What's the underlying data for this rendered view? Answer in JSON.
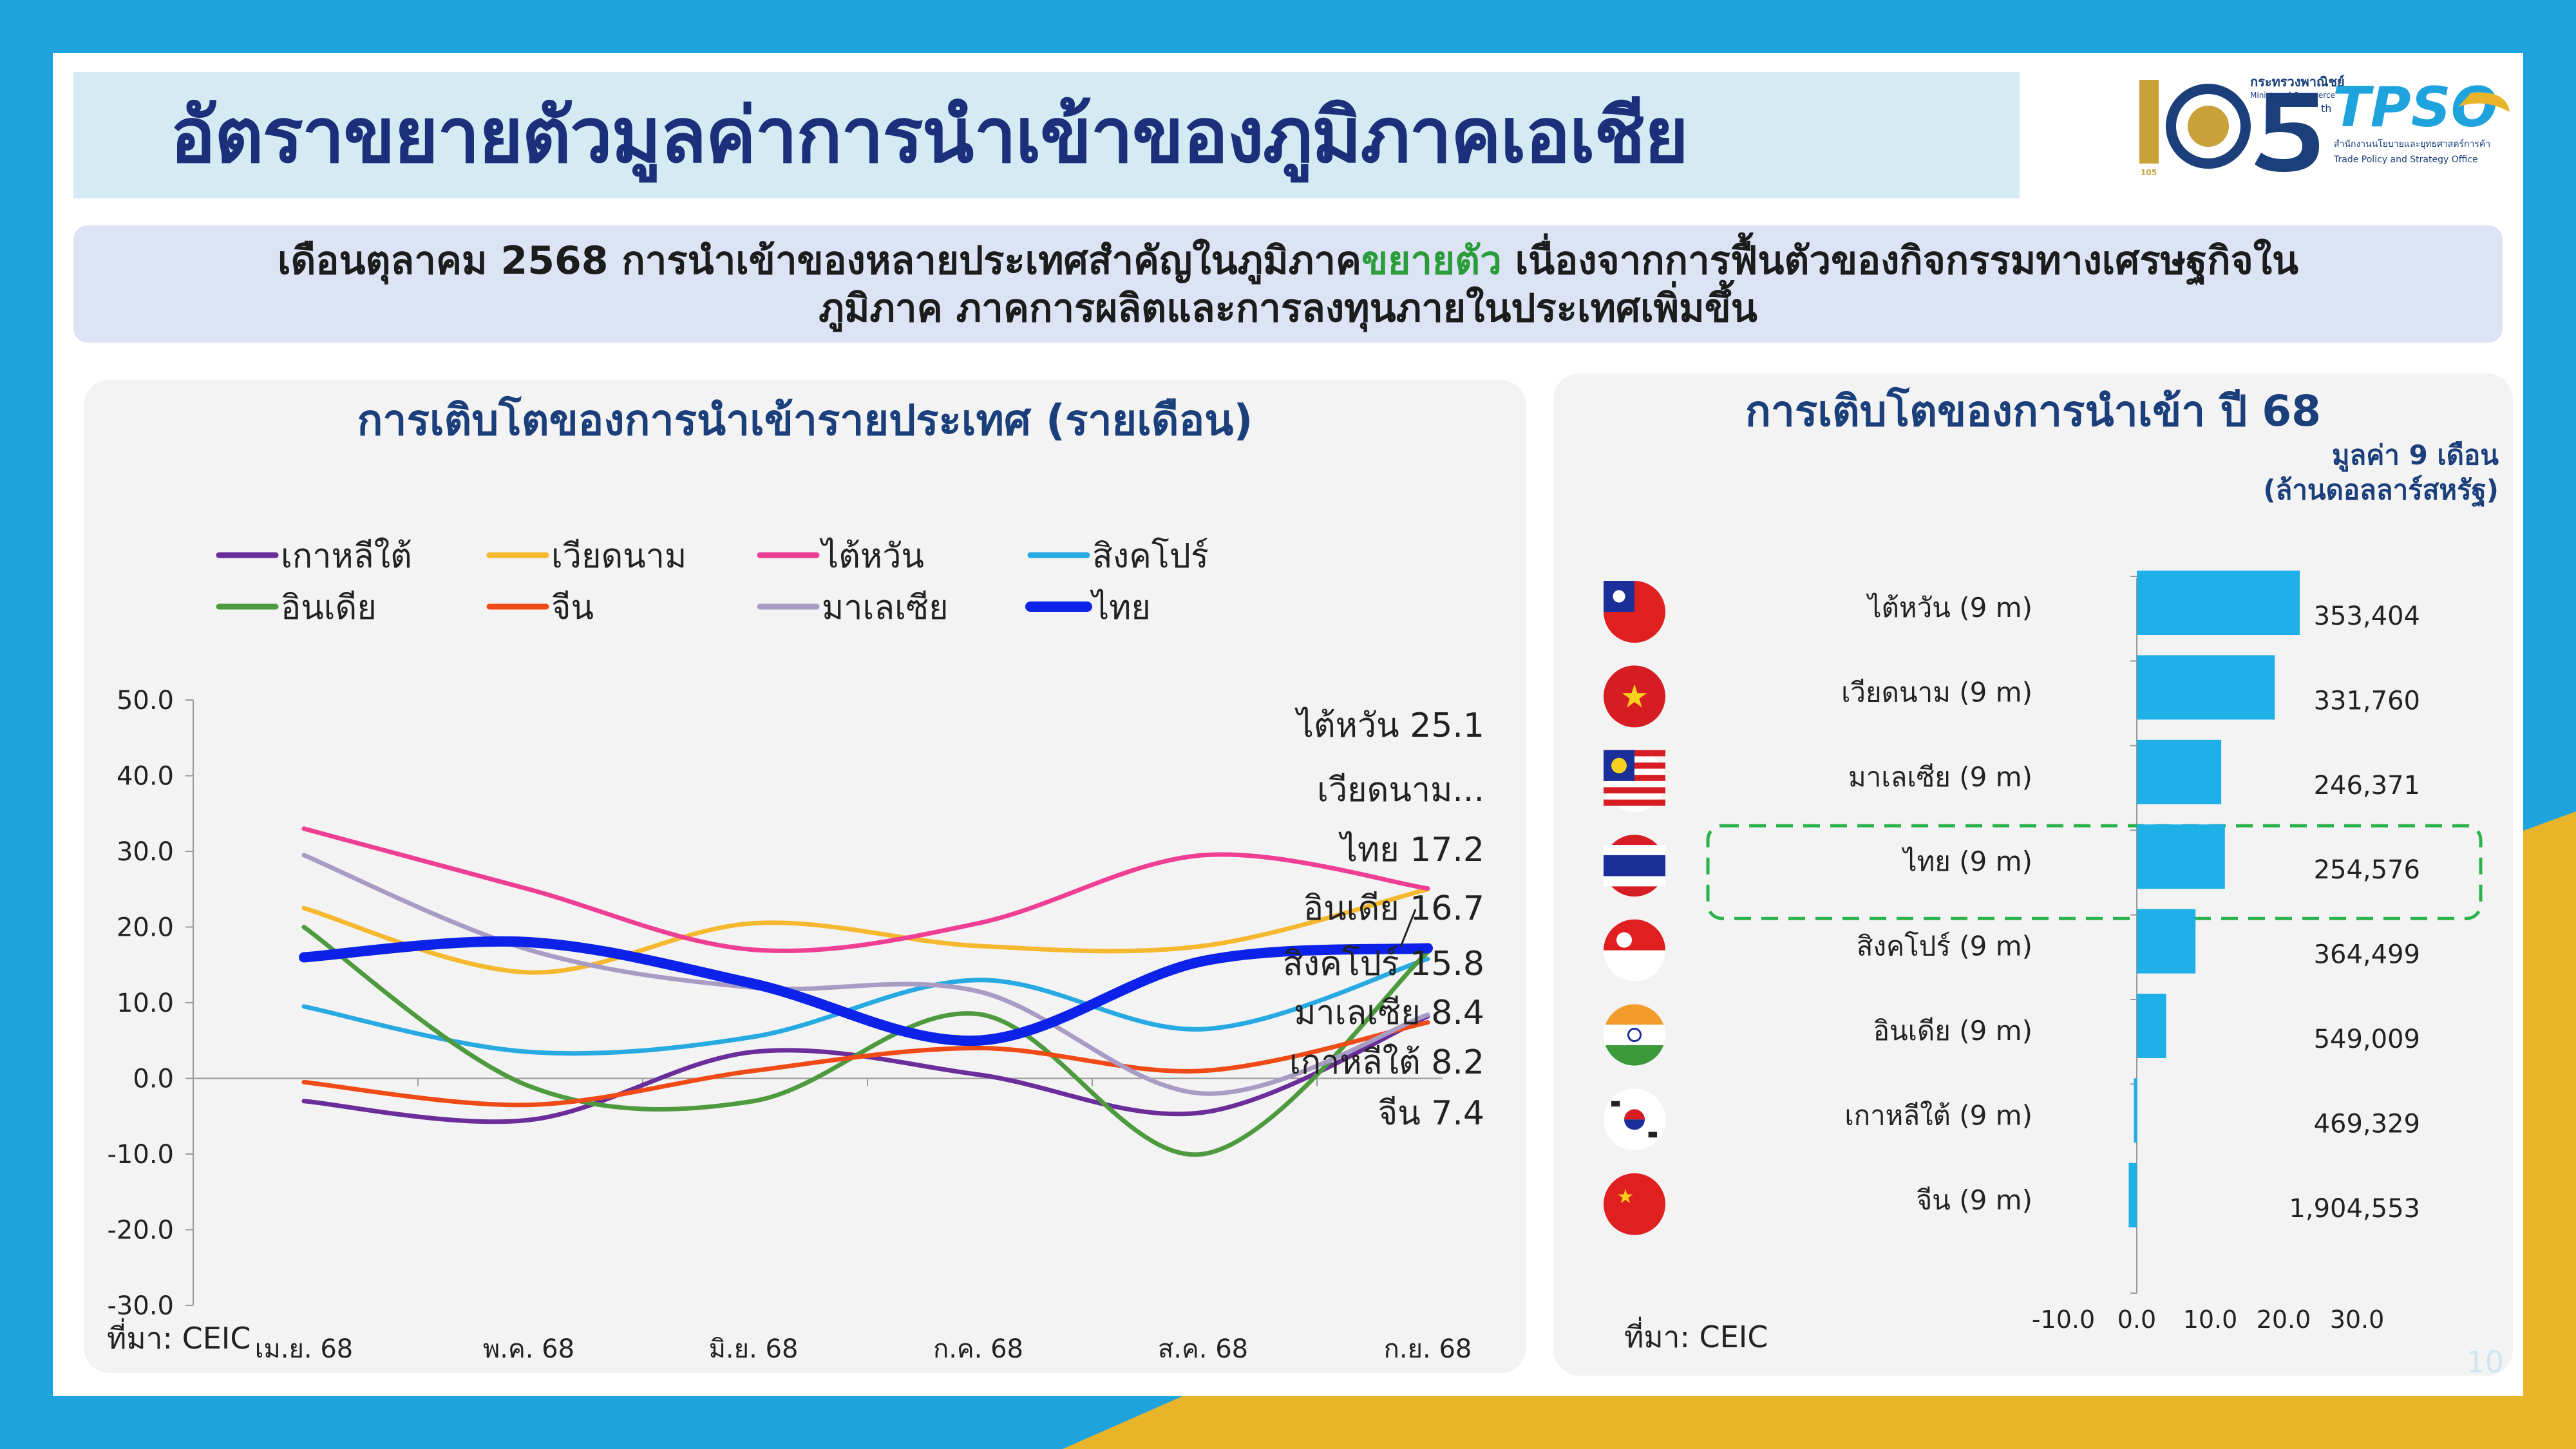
{
  "page": {
    "title": "อัตราขยายตัวมูลค่าการนำเข้าของภูมิภาคเอเชีย",
    "summary_part1": "เดือนตุลาคม 2568 การนำเข้าของหลายประเทศสำคัญในภูมิภาค",
    "summary_highlight": "ขยายตัว",
    "summary_part2": " เนื่องจากการฟื้นตัวของกิจกรรมทางเศรษฐกิจใน",
    "summary_line2": "ภูมิภาค ภาคการผลิตและการลงทุนภายในประเทศเพิ่มขึ้น",
    "page_number": "10",
    "logo_105_text": "กระทรวงพาณิชย์",
    "logo_105_sub": "Ministry of Commerce",
    "logo_105_number": "105",
    "logo_105_th": "th",
    "logo_tpso_name": "TPSO",
    "logo_tpso_th": "สำนักงานนโยบายและยุทธศาสตร์การค้า",
    "logo_tpso_en": "Trade Policy and Strategy Office"
  },
  "colors": {
    "korea": "#6a2d9a",
    "vietnam": "#f5b82e",
    "taiwan": "#ee3f94",
    "singapore": "#27a9e1",
    "india": "#4e9a3e",
    "china": "#f04a17",
    "malaysia": "#a89cc4",
    "thailand": "#0c22e8",
    "bar": "#1fb0e8",
    "highlight": "#2ab34a"
  },
  "chart_data": [
    {
      "type": "line",
      "title": "การเติบโตของการนำเข้ารายประเทศ (รายเดือน)",
      "categories": [
        "เม.ย. 68",
        "พ.ค. 68",
        "มิ.ย. 68",
        "ก.ค. 68",
        "ส.ค. 68",
        "ก.ย. 68"
      ],
      "ylim": [
        -30,
        50
      ],
      "yticks": [
        50,
        40,
        30,
        20,
        10,
        0,
        -10,
        -20,
        -30
      ],
      "ytick_labels": [
        "50.0",
        "40.0",
        "30.0",
        "20.0",
        "10.0",
        "0.0",
        "-10.0",
        "-20.0",
        "-30.0"
      ],
      "series": [
        {
          "key": "korea",
          "name": "เกาหลีใต้",
          "values": [
            -3,
            -5.5,
            3.5,
            0.5,
            -4.5,
            8.2
          ]
        },
        {
          "key": "vietnam",
          "name": "เวียดนาม",
          "values": [
            22.5,
            14,
            20.5,
            17.5,
            17.5,
            25
          ]
        },
        {
          "key": "taiwan",
          "name": "ไต้หวัน",
          "values": [
            33,
            25,
            17,
            20.5,
            29.5,
            25.1
          ]
        },
        {
          "key": "singapore",
          "name": "สิงคโปร์",
          "values": [
            9.5,
            3.5,
            5.5,
            13,
            6.5,
            15.8
          ]
        },
        {
          "key": "india",
          "name": "อินเดีย",
          "values": [
            20,
            -1,
            -3,
            8.5,
            -10,
            16.7
          ]
        },
        {
          "key": "china",
          "name": "จีน",
          "values": [
            -0.5,
            -3.5,
            1,
            4,
            1,
            7.4
          ]
        },
        {
          "key": "malaysia",
          "name": "มาเลเซีย",
          "values": [
            29.5,
            17,
            12,
            11.5,
            -2,
            8.4
          ]
        },
        {
          "key": "thailand",
          "name": "ไทย",
          "values": [
            16,
            18,
            12.5,
            5,
            15.5,
            17.2
          ]
        }
      ],
      "end_labels": [
        "ไต้หวัน 25.1",
        "เวียดนาม...",
        "ไทย 17.2",
        "อินเดีย 16.7",
        "สิงคโปร์ 15.8",
        "มาเลเซีย 8.4",
        "เกาหลีใต้ 8.2",
        "จีน 7.4"
      ],
      "source": "ที่มา: CEIC"
    },
    {
      "type": "bar",
      "orientation": "horizontal",
      "title": "การเติบโตของการนำเข้า ปี 68",
      "unit_line1": "มูลค่า 9 เดือน",
      "unit_line2": "(ล้านดอลลาร์สหรัฐ)",
      "categories": [
        "ไต้หวัน (9 m)",
        "เวียดนาม (9 m)",
        "มาเลเซีย (9 m)",
        "ไทย (9 m)",
        "สิงคโปร์ (9 m)",
        "อินเดีย (9 m)",
        "เกาหลีใต้ (9 m)",
        "จีน (9 m)"
      ],
      "values": [
        22.2,
        18.8,
        11.5,
        12.0,
        8.0,
        4.0,
        -0.4,
        -1.1
      ],
      "value_labels": [
        "353,404",
        "331,760",
        "246,371",
        "254,576",
        "364,499",
        "549,009",
        "469,329",
        "1,904,553"
      ],
      "flags": [
        "taiwan-flag",
        "vietnam-flag",
        "malaysia-flag",
        "thailand-flag",
        "singapore-flag",
        "india-flag",
        "korea-flag",
        "china-flag"
      ],
      "highlighted_category": "ไทย (9 m)",
      "xlim": [
        -10,
        30
      ],
      "xticks": [
        -10,
        0,
        10,
        20,
        30
      ],
      "xtick_labels": [
        "-10.0",
        "0.0",
        "10.0",
        "20.0",
        "30.0"
      ],
      "source": "ที่มา: CEIC"
    }
  ]
}
